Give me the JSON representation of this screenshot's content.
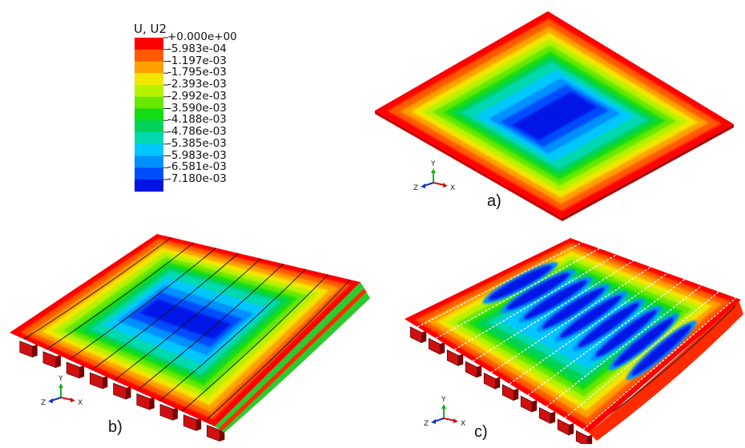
{
  "legend": {
    "title": "U, U2",
    "entries": [
      "+0.000e+00",
      "-5.983e-04",
      "-1.197e-03",
      "-1.795e-03",
      "-2.393e-03",
      "-2.992e-03",
      "-3.590e-03",
      "-4.188e-03",
      "-4.786e-03",
      "-5.385e-03",
      "-5.983e-03",
      "-6.581e-03",
      "-7.180e-03"
    ],
    "colors": [
      "#ff0000",
      "#ff5a00",
      "#ffa000",
      "#f2e600",
      "#b6f200",
      "#66e800",
      "#14dc14",
      "#00d25a",
      "#00d8b0",
      "#00c8ff",
      "#0090ff",
      "#004cff",
      "#0014e6"
    ]
  },
  "panels": [
    {
      "label": "a)"
    },
    {
      "label": "b)"
    },
    {
      "label": "c)"
    }
  ],
  "triad": {
    "x": "X",
    "y": "Y",
    "z": "Z"
  }
}
